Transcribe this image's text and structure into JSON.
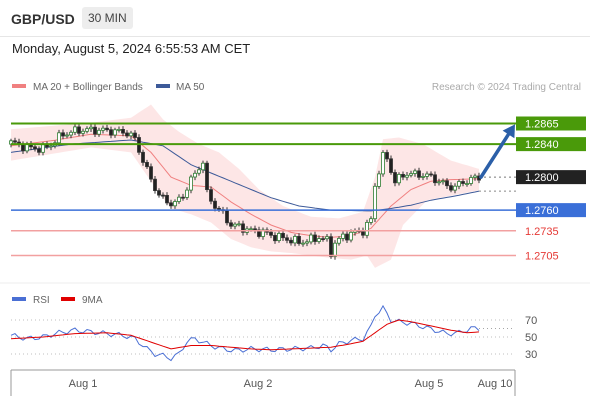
{
  "header": {
    "symbol": "GBP/USD",
    "timeframe": "30 MIN",
    "datetime": "Monday, August 5, 2024 6:55:53 AM CET"
  },
  "credit": "Research © 2024 Trading Central",
  "colors": {
    "resistance": "#4a9a0a",
    "support": "#3a6fd8",
    "secondary_support": "#f2a0a0",
    "ma20": "#f08080",
    "ma50": "#3d5a99",
    "rsi": "#4a6fd4",
    "rsi_ma": "#e00000",
    "price_label": "#222222",
    "arrow": "#2b5fa8"
  },
  "chart_data": {
    "type": "candlestick",
    "legend": [
      {
        "label": "MA 20 + Bollinger Bands",
        "color": "#f08080"
      },
      {
        "label": "MA 50",
        "color": "#3d5a99"
      }
    ],
    "levels": [
      {
        "value": 1.2865,
        "label": "1.2865",
        "kind": "resistance"
      },
      {
        "value": 1.284,
        "label": "1.2840",
        "kind": "resistance"
      },
      {
        "value": 1.28,
        "label": "1.2800",
        "kind": "last"
      },
      {
        "value": 1.276,
        "label": "1.2760",
        "kind": "support"
      },
      {
        "value": 1.2735,
        "label": "1.2735",
        "kind": "support2"
      },
      {
        "value": 1.2705,
        "label": "1.2705",
        "kind": "support2"
      }
    ],
    "x_ticks": [
      "Aug 1",
      "Aug 2",
      "Aug 5",
      "Aug 10"
    ],
    "price_points": [
      [
        0,
        1.2842
      ],
      [
        4,
        1.2836
      ],
      [
        8,
        1.2834
      ],
      [
        10,
        1.284
      ],
      [
        13,
        1.2852
      ],
      [
        17,
        1.2857
      ],
      [
        21,
        1.2857
      ],
      [
        25,
        1.2856
      ],
      [
        29,
        1.2854
      ],
      [
        31,
        1.2846
      ],
      [
        33,
        1.282
      ],
      [
        35,
        1.2797
      ],
      [
        37,
        1.2778
      ],
      [
        39,
        1.277
      ],
      [
        41,
        1.2768
      ],
      [
        43,
        1.2778
      ],
      [
        45,
        1.2796
      ],
      [
        47,
        1.2812
      ],
      [
        48,
        1.2818
      ],
      [
        49,
        1.278
      ],
      [
        51,
        1.2765
      ],
      [
        53,
        1.2755
      ],
      [
        55,
        1.2742
      ],
      [
        57,
        1.274
      ],
      [
        60,
        1.2735
      ],
      [
        63,
        1.2733
      ],
      [
        66,
        1.2728
      ],
      [
        69,
        1.2725
      ],
      [
        72,
        1.2721
      ],
      [
        75,
        1.2724
      ],
      [
        77,
        1.2727
      ],
      [
        79,
        1.2723
      ],
      [
        80,
        1.2709
      ],
      [
        81,
        1.272
      ],
      [
        83,
        1.2728
      ],
      [
        86,
        1.2733
      ],
      [
        88,
        1.2735
      ],
      [
        90,
        1.2748
      ],
      [
        91,
        1.279
      ],
      [
        92,
        1.2808
      ],
      [
        93,
        1.2825
      ],
      [
        94,
        1.2822
      ],
      [
        95,
        1.2808
      ],
      [
        96,
        1.2795
      ],
      [
        97,
        1.2798
      ],
      [
        99,
        1.2805
      ],
      [
        101,
        1.2803
      ],
      [
        103,
        1.2803
      ],
      [
        105,
        1.28
      ],
      [
        107,
        1.2795
      ],
      [
        109,
        1.2789
      ],
      [
        111,
        1.2788
      ],
      [
        113,
        1.2794
      ],
      [
        115,
        1.2797
      ],
      [
        117,
        1.28
      ]
    ],
    "ma20": [
      [
        0,
        1.2838
      ],
      [
        10,
        1.2844
      ],
      [
        20,
        1.2852
      ],
      [
        30,
        1.285
      ],
      [
        35,
        1.283
      ],
      [
        40,
        1.28
      ],
      [
        45,
        1.279
      ],
      [
        50,
        1.2788
      ],
      [
        55,
        1.277
      ],
      [
        60,
        1.2755
      ],
      [
        65,
        1.2742
      ],
      [
        70,
        1.2733
      ],
      [
        75,
        1.2729
      ],
      [
        80,
        1.2727
      ],
      [
        85,
        1.2729
      ],
      [
        90,
        1.2738
      ],
      [
        95,
        1.2765
      ],
      [
        100,
        1.2785
      ],
      [
        105,
        1.2795
      ],
      [
        110,
        1.2797
      ],
      [
        117,
        1.2798
      ]
    ],
    "bb_upper": [
      [
        0,
        1.2858
      ],
      [
        10,
        1.2862
      ],
      [
        20,
        1.2866
      ],
      [
        30,
        1.2872
      ],
      [
        35,
        1.2888
      ],
      [
        38,
        1.287
      ],
      [
        42,
        1.2855
      ],
      [
        47,
        1.284
      ],
      [
        52,
        1.283
      ],
      [
        57,
        1.281
      ],
      [
        62,
        1.2785
      ],
      [
        68,
        1.2765
      ],
      [
        75,
        1.2752
      ],
      [
        82,
        1.275
      ],
      [
        88,
        1.2758
      ],
      [
        91,
        1.28
      ],
      [
        93,
        1.2846
      ],
      [
        97,
        1.2848
      ],
      [
        103,
        1.284
      ],
      [
        110,
        1.282
      ],
      [
        117,
        1.281
      ]
    ],
    "bb_lower": [
      [
        0,
        1.282
      ],
      [
        10,
        1.2828
      ],
      [
        20,
        1.2836
      ],
      [
        30,
        1.283
      ],
      [
        35,
        1.2795
      ],
      [
        40,
        1.2762
      ],
      [
        45,
        1.2755
      ],
      [
        50,
        1.2745
      ],
      [
        55,
        1.2725
      ],
      [
        60,
        1.2715
      ],
      [
        65,
        1.271
      ],
      [
        70,
        1.2708
      ],
      [
        75,
        1.2705
      ],
      [
        80,
        1.2702
      ],
      [
        85,
        1.27
      ],
      [
        89,
        1.2705
      ],
      [
        91,
        1.269
      ],
      [
        95,
        1.27
      ],
      [
        98,
        1.2742
      ],
      [
        104,
        1.2772
      ],
      [
        117,
        1.2784
      ]
    ],
    "ma50": [
      [
        0,
        1.283
      ],
      [
        15,
        1.284
      ],
      [
        30,
        1.2845
      ],
      [
        38,
        1.2838
      ],
      [
        45,
        1.2815
      ],
      [
        55,
        1.2795
      ],
      [
        65,
        1.2775
      ],
      [
        72,
        1.2765
      ],
      [
        80,
        1.276
      ],
      [
        90,
        1.2759
      ],
      [
        95,
        1.2762
      ],
      [
        100,
        1.2766
      ],
      [
        105,
        1.2772
      ],
      [
        112,
        1.2778
      ],
      [
        117,
        1.2783
      ]
    ],
    "projection": {
      "from": [
        117,
        1.28
      ],
      "to": [
        126,
        1.2864
      ]
    },
    "rsi": {
      "legend": [
        {
          "label": "RSI",
          "color": "#4a6fd4"
        },
        {
          "label": "9MA",
          "color": "#e00000"
        }
      ],
      "levels": [
        "70",
        "50",
        "30"
      ],
      "ylim": [
        10,
        90
      ],
      "rsi_points": [
        [
          0,
          52
        ],
        [
          4,
          48
        ],
        [
          8,
          50
        ],
        [
          12,
          55
        ],
        [
          16,
          58
        ],
        [
          20,
          56
        ],
        [
          24,
          54
        ],
        [
          28,
          52
        ],
        [
          31,
          48
        ],
        [
          34,
          36
        ],
        [
          36,
          30
        ],
        [
          38,
          28
        ],
        [
          40,
          25
        ],
        [
          42,
          30
        ],
        [
          44,
          45
        ],
        [
          46,
          48
        ],
        [
          48,
          44
        ],
        [
          50,
          40
        ],
        [
          53,
          36
        ],
        [
          56,
          34
        ],
        [
          60,
          36
        ],
        [
          65,
          35
        ],
        [
          70,
          36
        ],
        [
          75,
          37
        ],
        [
          78,
          40
        ],
        [
          80,
          35
        ],
        [
          82,
          42
        ],
        [
          85,
          46
        ],
        [
          88,
          48
        ],
        [
          90,
          62
        ],
        [
          91,
          76
        ],
        [
          92,
          80
        ],
        [
          93,
          84
        ],
        [
          95,
          70
        ],
        [
          97,
          68
        ],
        [
          100,
          66
        ],
        [
          103,
          62
        ],
        [
          106,
          58
        ],
        [
          109,
          54
        ],
        [
          112,
          55
        ],
        [
          115,
          60
        ],
        [
          117,
          60
        ]
      ],
      "ma_points": [
        [
          0,
          48
        ],
        [
          8,
          50
        ],
        [
          16,
          54
        ],
        [
          24,
          55
        ],
        [
          30,
          52
        ],
        [
          35,
          44
        ],
        [
          40,
          36
        ],
        [
          45,
          40
        ],
        [
          50,
          40
        ],
        [
          55,
          38
        ],
        [
          60,
          36
        ],
        [
          65,
          35
        ],
        [
          70,
          36
        ],
        [
          75,
          37
        ],
        [
          80,
          38
        ],
        [
          85,
          42
        ],
        [
          88,
          45
        ],
        [
          91,
          55
        ],
        [
          94,
          65
        ],
        [
          97,
          70
        ],
        [
          100,
          68
        ],
        [
          105,
          63
        ],
        [
          110,
          58
        ],
        [
          114,
          55
        ],
        [
          117,
          56
        ]
      ]
    }
  }
}
